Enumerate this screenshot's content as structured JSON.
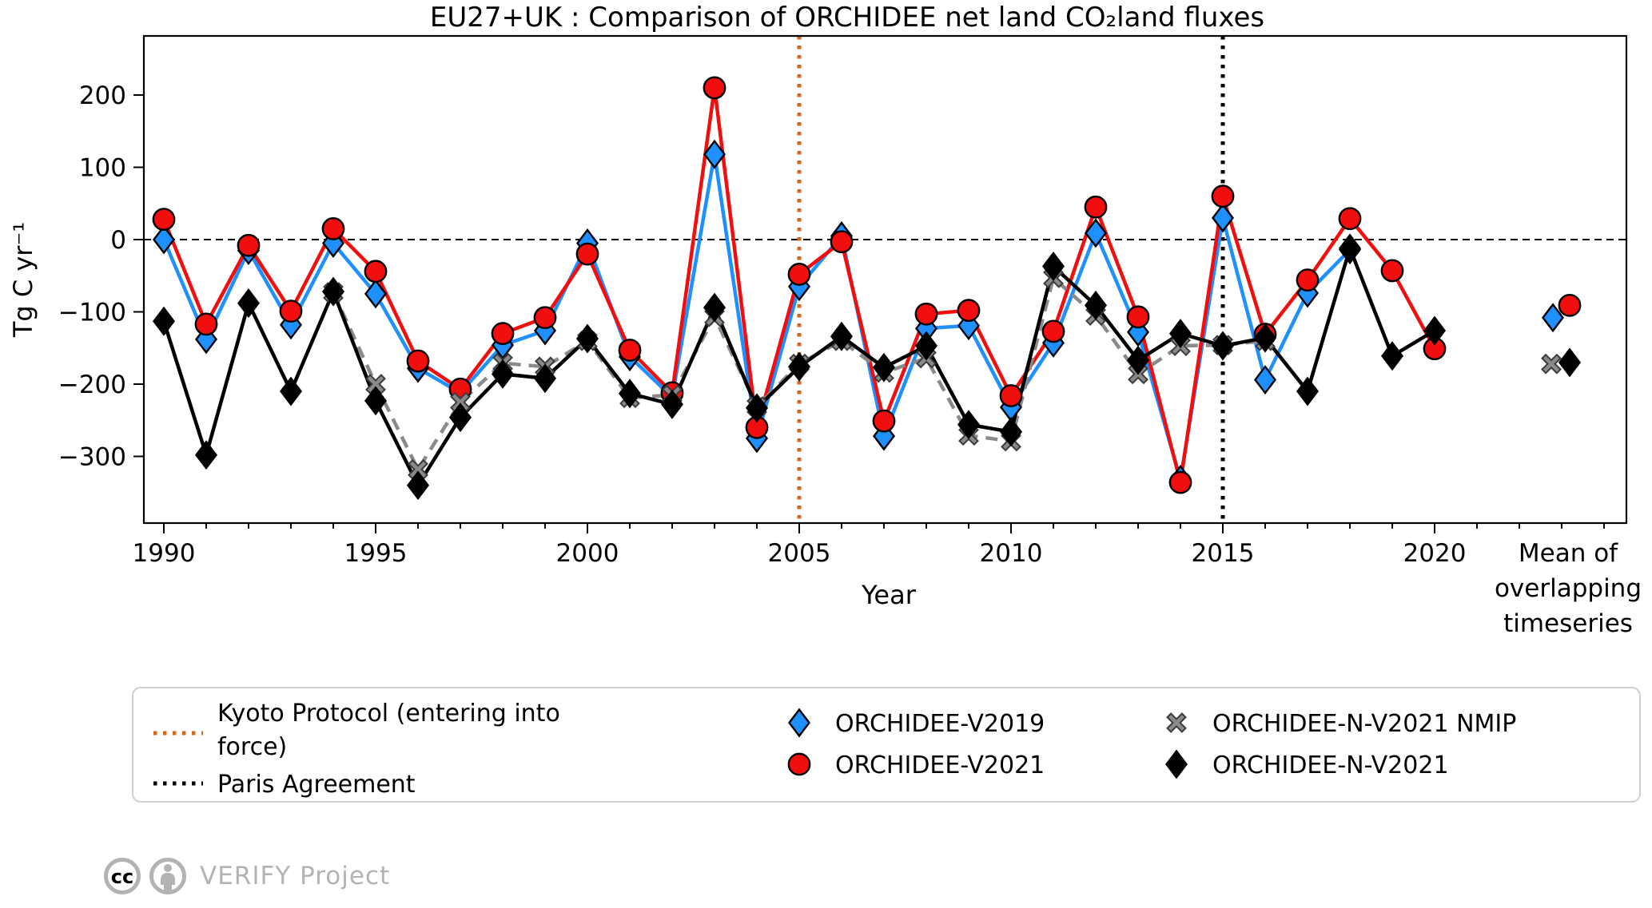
{
  "page": {
    "background": "#ffffff"
  },
  "chart_data": {
    "type": "line",
    "title": "EU27+UK : Comparison of ORCHIDEE net land CO₂land fluxes",
    "xlabel": "Year",
    "ylabel": "Tg C yr⁻¹",
    "x_ticks_major": [
      1990,
      1995,
      2000,
      2005,
      2010,
      2015,
      2020
    ],
    "x_tick_labels": [
      "1990",
      "1995",
      "2000",
      "2005",
      "2010",
      "2015",
      "2020"
    ],
    "y_ticks": [
      200,
      100,
      0,
      -100,
      -200,
      -300
    ],
    "y_tick_labels": [
      "200",
      "100",
      "0",
      "−100",
      "−200",
      "−300"
    ],
    "ylim": [
      -385,
      282
    ],
    "xlim_years": [
      1989.5,
      2024.6
    ],
    "grid": false,
    "zero_line": 0,
    "legend_position": "bottom",
    "mean_column_label_lines": [
      "Mean of",
      "overlapping",
      "timeseries"
    ],
    "events": [
      {
        "name": "kyoto",
        "label": "Kyoto Protocol (entering into force)",
        "label_lines": [
          "Kyoto Protocol (entering into",
          "force)"
        ],
        "year": 2005,
        "color": "#d2691e",
        "style": "dotted"
      },
      {
        "name": "paris",
        "label": "Paris Agreement",
        "label_lines": [
          "Paris Agreement"
        ],
        "year": 2015,
        "color": "#000000",
        "style": "dotted"
      }
    ],
    "series": [
      {
        "name": "ORCHIDEE-V2019",
        "slug": "orchidee-v2019",
        "marker": "diamond",
        "color": "#1e90ff",
        "line": "solid",
        "start_year": 1990,
        "values": [
          0,
          -138,
          -15,
          -118,
          -5,
          -75,
          -178,
          -212,
          -146,
          -126,
          -5,
          -162,
          -218,
          118,
          -275,
          -65,
          5,
          -272,
          -123,
          -119,
          -232,
          -143,
          9,
          -128,
          -332,
          30,
          -194,
          -74,
          -14
        ],
        "mean_of_overlap": -108
      },
      {
        "name": "ORCHIDEE-V2021",
        "slug": "orchidee-v2021",
        "marker": "circle",
        "color": "#f10e0e",
        "line": "solid",
        "start_year": 1990,
        "values": [
          28,
          -117,
          -8,
          -99,
          15,
          -44,
          -168,
          -207,
          -130,
          -108,
          -20,
          -153,
          -212,
          210,
          -260,
          -48,
          -3,
          -251,
          -103,
          -98,
          -216,
          -127,
          45,
          -107,
          -336,
          60,
          -131,
          -56,
          29,
          -43,
          -151
        ],
        "mean_of_overlap": -91
      },
      {
        "name": "ORCHIDEE-N-V2021 NMIP",
        "slug": "orchidee-n-v2021-nmip",
        "marker": "x",
        "color": "#8a8a8a",
        "line": "dashed",
        "start_year": 1994,
        "values": [
          -73,
          -200,
          -318,
          -225,
          -171,
          -176,
          -140,
          -219,
          -215,
          -107,
          -231,
          -172,
          -140,
          -184,
          -164,
          -271,
          -279,
          -53,
          -105,
          -186,
          -147,
          -146,
          -140
        ],
        "mean_of_overlap": -172
      },
      {
        "name": "ORCHIDEE-N-V2021",
        "slug": "orchidee-n-v2021",
        "marker": "diamond",
        "color": "#000000",
        "line": "solid",
        "start_year": 1990,
        "values": [
          -113,
          -298,
          -88,
          -210,
          -72,
          -223,
          -340,
          -246,
          -186,
          -192,
          -137,
          -213,
          -228,
          -94,
          -233,
          -176,
          -134,
          -177,
          -147,
          -256,
          -266,
          -37,
          -91,
          -167,
          -130,
          -147,
          -136,
          -210,
          -12,
          -161,
          -126
        ],
        "mean_of_overlap": -170
      }
    ]
  },
  "legend": {
    "entries": [
      {
        "slug": "kyoto",
        "label_lines": [
          "Kyoto Protocol (entering into",
          "force)"
        ],
        "sample": "dotted-line",
        "color": "#d2691e"
      },
      {
        "slug": "paris",
        "label_lines": [
          "Paris Agreement"
        ],
        "sample": "dotted-line",
        "color": "#000000"
      },
      {
        "slug": "orchidee-v2019",
        "label_lines": [
          "ORCHIDEE-V2019"
        ],
        "sample": "diamond",
        "color": "#1e90ff"
      },
      {
        "slug": "orchidee-v2021",
        "label_lines": [
          "ORCHIDEE-V2021"
        ],
        "sample": "circle",
        "color": "#f10e0e"
      },
      {
        "slug": "orchidee-n-v2021-nmip",
        "label_lines": [
          "ORCHIDEE-N-V2021 NMIP"
        ],
        "sample": "x",
        "color": "#8a8a8a"
      },
      {
        "slug": "orchidee-n-v2021",
        "label_lines": [
          "ORCHIDEE-N-V2021"
        ],
        "sample": "diamond",
        "color": "#000000"
      }
    ]
  },
  "footer": {
    "credit": "VERIFY Project",
    "icons": [
      "cc-icon",
      "attribution-person-icon"
    ]
  }
}
